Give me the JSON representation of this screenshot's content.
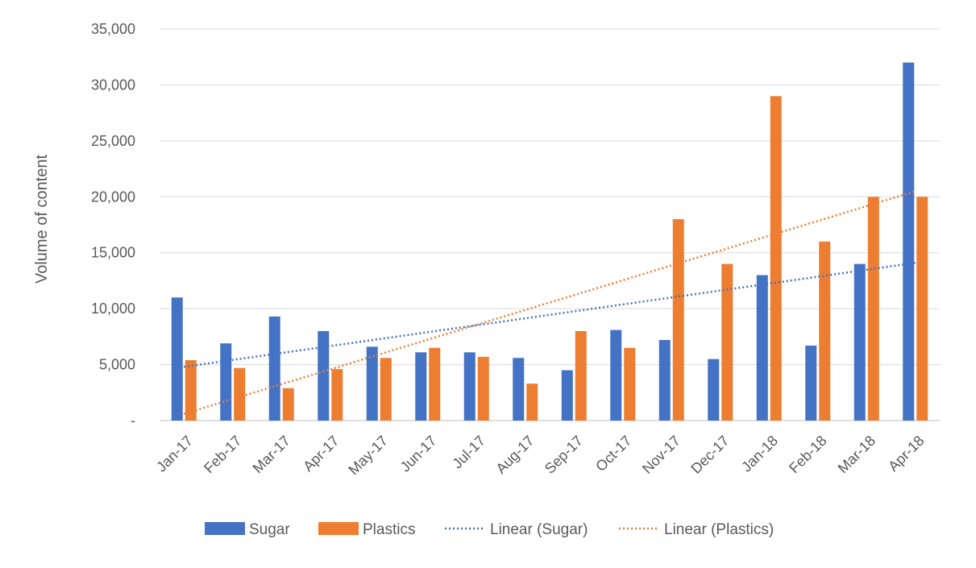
{
  "chart_data": {
    "type": "bar",
    "title": "",
    "xlabel": "",
    "ylabel": "Volume of content",
    "ylim": [
      0,
      35000
    ],
    "y_ticks": [
      0,
      5000,
      10000,
      15000,
      20000,
      25000,
      30000,
      35000
    ],
    "y_tick_labels": [
      "-",
      "5,000",
      "10,000",
      "15,000",
      "20,000",
      "25,000",
      "30,000",
      "35,000"
    ],
    "grid": true,
    "legend_position": "bottom",
    "categories": [
      "Jan-17",
      "Feb-17",
      "Mar-17",
      "Apr-17",
      "May-17",
      "Jun-17",
      "Jul-17",
      "Aug-17",
      "Sep-17",
      "Oct-17",
      "Nov-17",
      "Dec-17",
      "Jan-18",
      "Feb-18",
      "Mar-18",
      "Apr-18"
    ],
    "series": [
      {
        "name": "Sugar",
        "color": "#4472C4",
        "values": [
          11000,
          6900,
          9300,
          8000,
          6600,
          6100,
          6100,
          5600,
          4500,
          8100,
          7200,
          5500,
          13000,
          6700,
          14000,
          32000
        ]
      },
      {
        "name": "Plastics",
        "color": "#ED7D31",
        "values": [
          5400,
          4700,
          2900,
          4600,
          5600,
          6500,
          5700,
          3300,
          8000,
          6500,
          18000,
          14000,
          29000,
          16000,
          20000,
          20000
        ]
      }
    ],
    "trendlines": [
      {
        "name": "Linear (Sugar)",
        "series": "Sugar",
        "color": "#4472C4",
        "start": 4800,
        "end": 14100
      },
      {
        "name": "Linear (Plastics)",
        "series": "Plastics",
        "color": "#ED7D31",
        "start": 600,
        "end": 20500
      }
    ]
  }
}
